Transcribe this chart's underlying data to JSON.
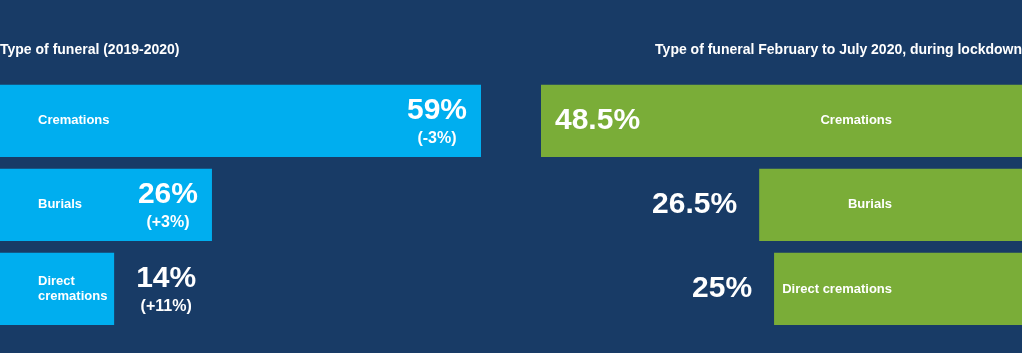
{
  "chart_data": [
    {
      "type": "bar",
      "orientation": "horizontal",
      "title": "Type of funeral (2019-2020)",
      "categories": [
        "Cremations",
        "Burials",
        "Direct cremations"
      ],
      "values": [
        59,
        26,
        14
      ],
      "color": "#00aeef",
      "value_labels": [
        "59%",
        "26%",
        "14%"
      ],
      "annotations": [
        {
          "text": "(-3%)",
          "x": 59,
          "y": "Cremations"
        },
        {
          "text": "(+3%)",
          "x": 26,
          "y": "Burials"
        },
        {
          "text": "(+11%)",
          "x": 14,
          "y": "Direct cremations"
        }
      ],
      "tick_labels": false,
      "legend": false
    },
    {
      "type": "bar",
      "orientation": "horizontal",
      "title": "Type of funeral February to July 2020, during lockdown",
      "categories": [
        "Cremations",
        "Burials",
        "Direct cremations"
      ],
      "values": [
        48.5,
        26.5,
        25
      ],
      "color": "#7aad38",
      "value_labels": [
        "48.5%",
        "26.5%",
        "25%"
      ],
      "xlim": [
        48.5,
        0
      ],
      "tick_labels": false,
      "legend": false
    }
  ]
}
